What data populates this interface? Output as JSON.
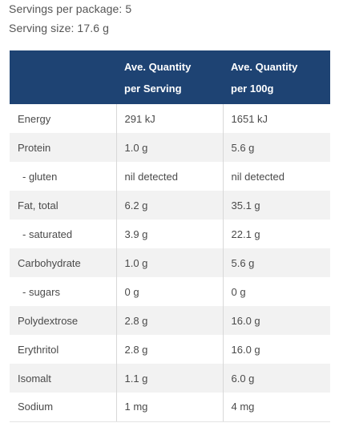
{
  "servings_per_package": "Servings per package: 5",
  "serving_size": "Serving size: 17.6 g",
  "table": {
    "headers": [
      {
        "line1": "",
        "line2": ""
      },
      {
        "line1": "Ave. Quantity",
        "line2": "per Serving"
      },
      {
        "line1": "Ave. Quantity",
        "line2": "per 100g"
      }
    ],
    "rows": [
      {
        "label": "Energy",
        "per_serving": "291 kJ",
        "per_100g": "1651 kJ",
        "indent": false
      },
      {
        "label": "Protein",
        "per_serving": "1.0 g",
        "per_100g": "5.6 g",
        "indent": false
      },
      {
        "label": "- gluten",
        "per_serving": "nil detected",
        "per_100g": "nil detected",
        "indent": true
      },
      {
        "label": "Fat, total",
        "per_serving": "6.2 g",
        "per_100g": "35.1 g",
        "indent": false
      },
      {
        "label": "- saturated",
        "per_serving": "3.9 g",
        "per_100g": "22.1 g",
        "indent": true
      },
      {
        "label": "Carbohydrate",
        "per_serving": "1.0 g",
        "per_100g": "5.6 g",
        "indent": false
      },
      {
        "label": "- sugars",
        "per_serving": "0 g",
        "per_100g": "0 g",
        "indent": true
      },
      {
        "label": "Polydextrose",
        "per_serving": "2.8 g",
        "per_100g": "16.0 g",
        "indent": false
      },
      {
        "label": "Erythritol",
        "per_serving": "2.8 g",
        "per_100g": "16.0 g",
        "indent": false
      },
      {
        "label": "Isomalt",
        "per_serving": "1.1 g",
        "per_100g": "6.0 g",
        "indent": false
      },
      {
        "label": "Sodium",
        "per_serving": "1 mg",
        "per_100g": "4 mg",
        "indent": false
      }
    ]
  },
  "colors": {
    "header_bg": "#1e4373",
    "header_text": "#ffffff",
    "stripe_bg": "#f2f2f2",
    "body_text": "#4a4a4a"
  }
}
